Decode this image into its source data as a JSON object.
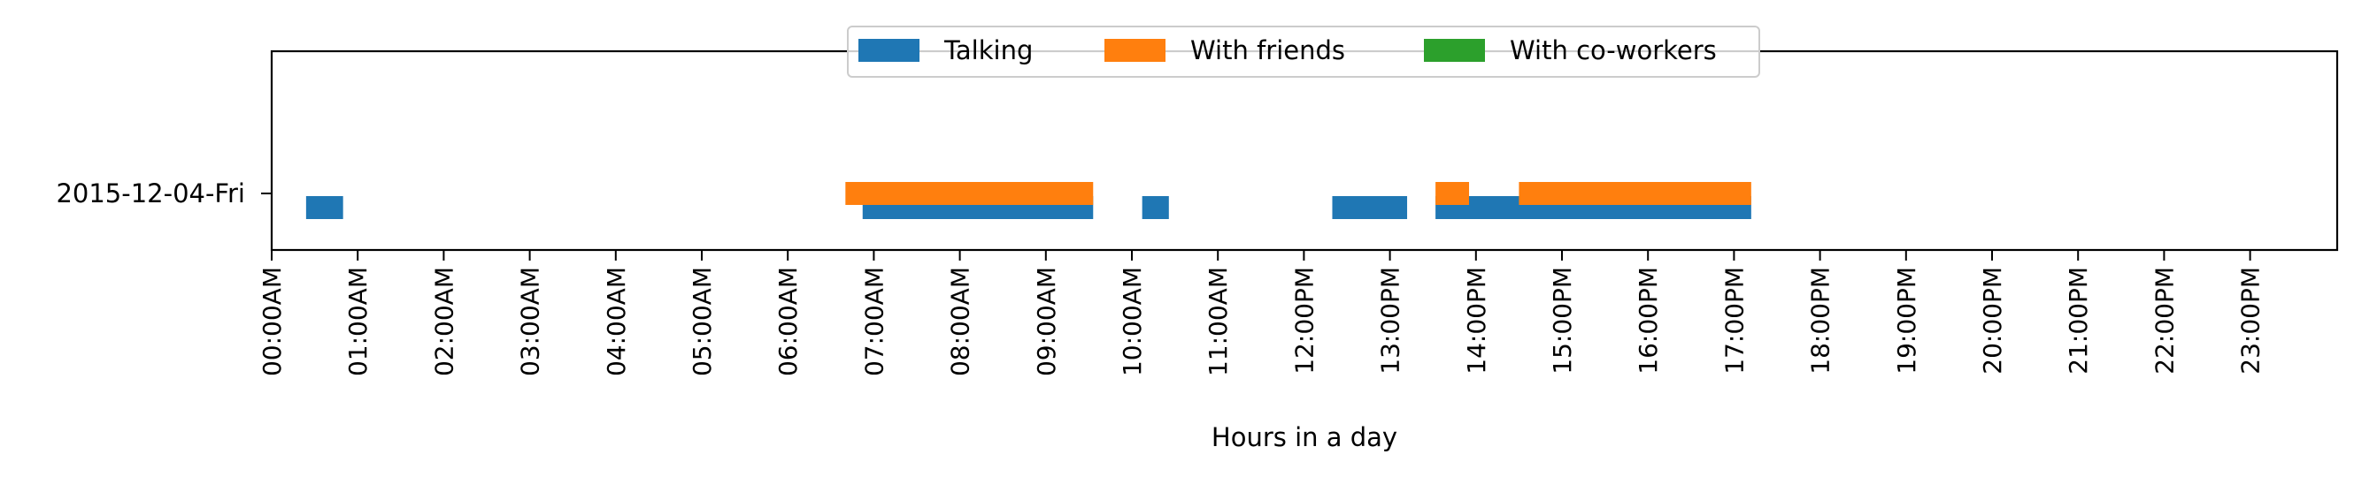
{
  "chart_data": {
    "type": "bar",
    "orientation": "horizontal-timeline",
    "categories": [
      "2015-12-04-Fri"
    ],
    "xlabel": "Hours in a day",
    "xlim": [
      0,
      24
    ],
    "x_ticks": [
      "00:00AM",
      "01:00AM",
      "02:00AM",
      "03:00AM",
      "04:00AM",
      "05:00AM",
      "06:00AM",
      "07:00AM",
      "08:00AM",
      "09:00AM",
      "10:00AM",
      "11:00AM",
      "12:00PM",
      "13:00PM",
      "14:00PM",
      "15:00PM",
      "16:00PM",
      "17:00PM",
      "18:00PM",
      "19:00PM",
      "20:00PM",
      "21:00PM",
      "22:00PM",
      "23:00PM"
    ],
    "legend_position": "top-center",
    "grid": false,
    "series": [
      {
        "name": "Talking",
        "color": "#1f77b4",
        "intervals": [
          {
            "start": 0.4,
            "end": 0.83
          },
          {
            "start": 6.87,
            "end": 9.55
          },
          {
            "start": 10.12,
            "end": 10.43
          },
          {
            "start": 12.33,
            "end": 13.2
          },
          {
            "start": 13.53,
            "end": 17.2
          }
        ]
      },
      {
        "name": "With friends",
        "color": "#ff7f0e",
        "intervals": [
          {
            "start": 6.67,
            "end": 9.55
          },
          {
            "start": 13.53,
            "end": 13.92
          },
          {
            "start": 14.5,
            "end": 17.2
          }
        ]
      },
      {
        "name": "With co-workers",
        "color": "#2ca02c",
        "intervals": []
      }
    ]
  }
}
